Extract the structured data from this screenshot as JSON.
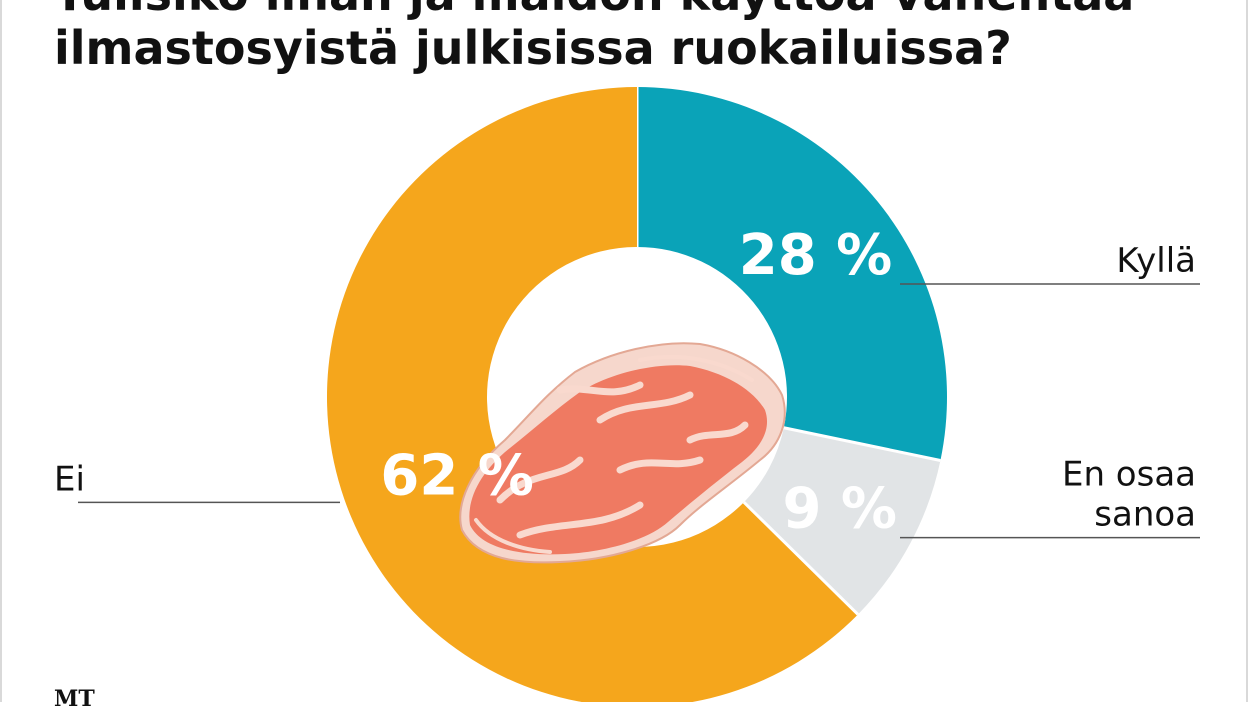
{
  "title_lines": [
    "Tulisiko lihan ja maidon käyttöä vähentää",
    "ilmastosyistä julkisissa ruokailuissa?"
  ],
  "source": "MT",
  "colors": {
    "kylla": "#0aa3b8",
    "en_osaa": "#e1e4e6",
    "ei": "#f5a61c",
    "leader": "#555555",
    "text": "#111111",
    "meat": "#ef7a62"
  },
  "center_icon": "meat-steak-icon",
  "chart_data": {
    "type": "pie",
    "variant": "donut",
    "title": "Tulisiko lihan ja maidon käyttöä vähentää ilmastosyistä julkisissa ruokailuissa?",
    "start": "top",
    "direction": "clockwise",
    "legend": "none",
    "slices": [
      {
        "label": "Kyllä",
        "value": 28,
        "value_label": "28 %",
        "color": "#0aa3b8",
        "side": "right",
        "label_lines": [
          "Kyllä"
        ]
      },
      {
        "label": "En osaa sanoa",
        "value": 9,
        "value_label": "9 %",
        "color": "#e1e4e6",
        "side": "right",
        "label_lines": [
          "En osaa",
          "sanoa"
        ]
      },
      {
        "label": "Ei",
        "value": 62,
        "value_label": "62 %",
        "color": "#f5a61c",
        "side": "left",
        "label_lines": [
          "Ei"
        ]
      }
    ]
  }
}
